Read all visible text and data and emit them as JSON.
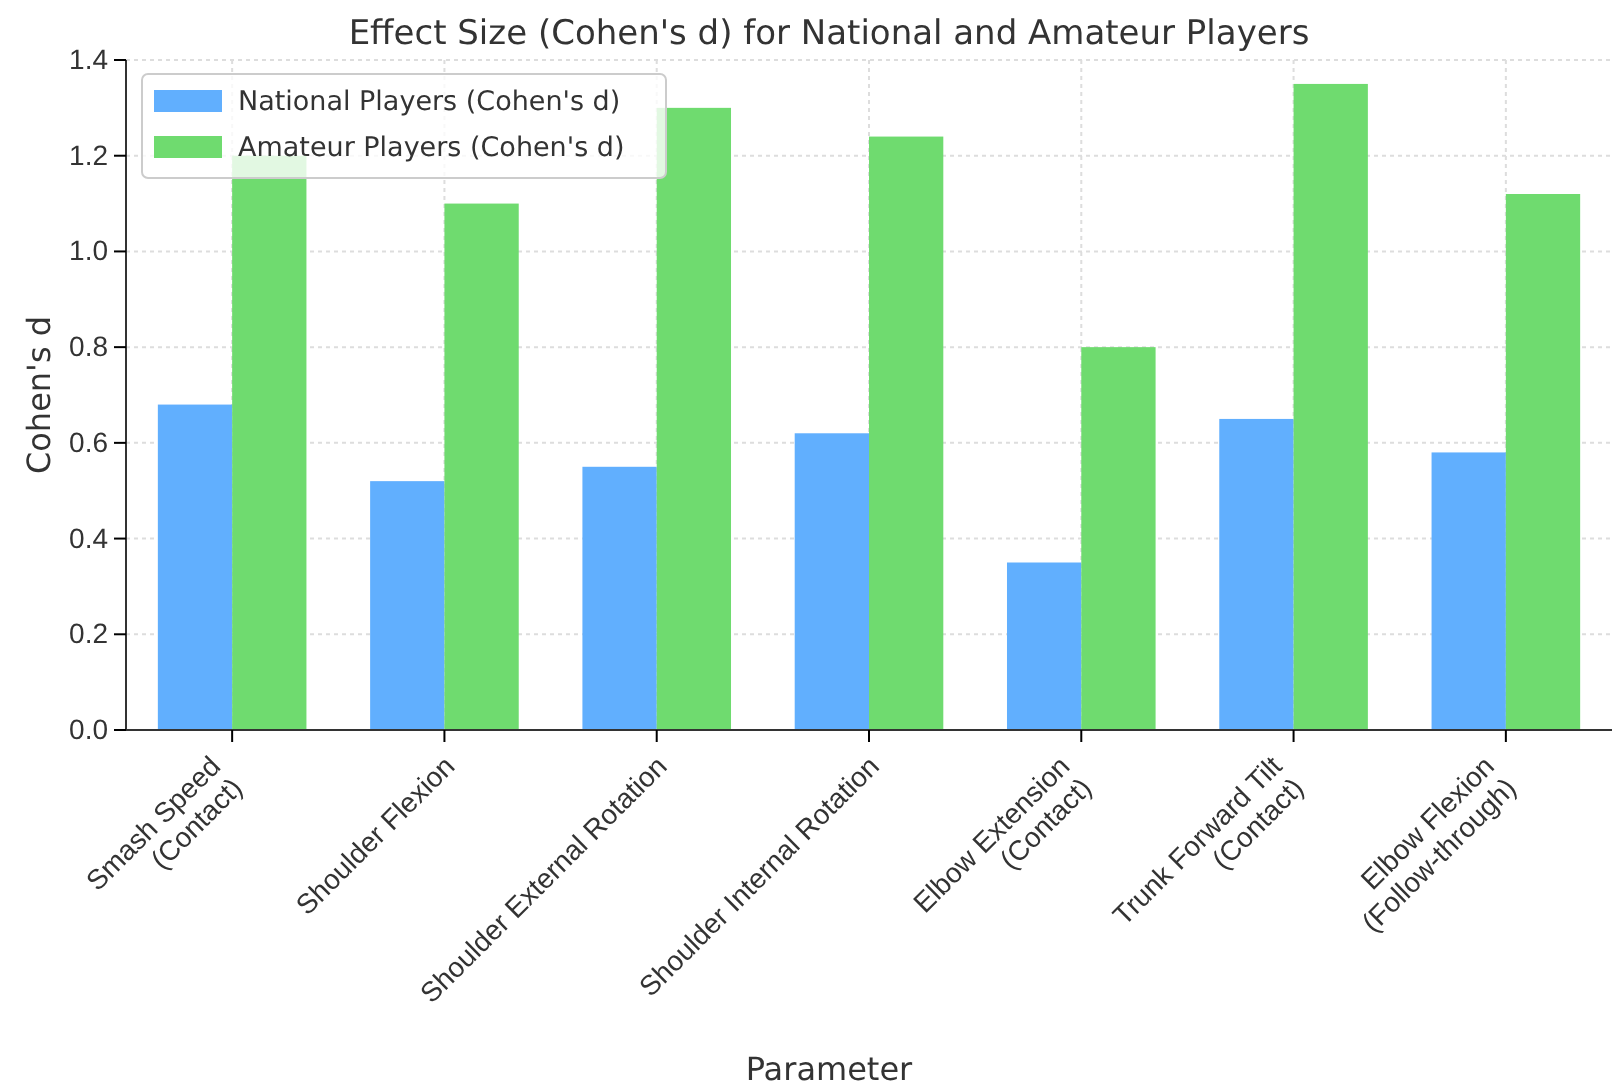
{
  "chart_data": {
    "type": "bar",
    "title": "Effect Size (Cohen's d) for National and Amateur Players",
    "xlabel": "Parameter",
    "ylabel": "Cohen's d",
    "categories": [
      "Smash Speed\n(Contact)",
      "Shoulder Flexion",
      "Shoulder External Rotation",
      "Shoulder Internal Rotation",
      "Elbow Extension\n(Contact)",
      "Trunk Forward Tilt\n(Contact)",
      "Elbow Flexion\n(Follow-through)"
    ],
    "series": [
      {
        "name": "National Players (Cohen's d)",
        "color": "#61affe",
        "values": [
          0.68,
          0.52,
          0.55,
          0.62,
          0.35,
          0.65,
          0.58
        ]
      },
      {
        "name": "Amateur Players (Cohen's d)",
        "color": "#6fdb6f",
        "values": [
          1.2,
          1.1,
          1.3,
          1.24,
          0.8,
          1.35,
          1.12
        ]
      }
    ],
    "ylim": [
      0,
      1.4
    ],
    "yticks": [
      {
        "value": 0,
        "label": "0.0"
      },
      0.2,
      0.4,
      0.6,
      0.8,
      {
        "value": 1,
        "label": "1.0"
      },
      1.2,
      1.4
    ],
    "grid": true,
    "legend": "top left"
  }
}
